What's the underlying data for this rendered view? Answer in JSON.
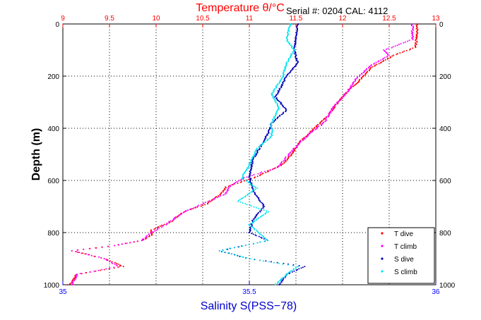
{
  "chart_data": {
    "type": "scatter",
    "title": "Temperature θ/°C",
    "annotation": "Serial #: 0204  CAL: 4112",
    "xlabel_top": "Temperature θ/°C",
    "xlabel_bottom": "Salinity S(PSS−78)",
    "ylabel": "Depth (m)",
    "x_top": {
      "min": 9,
      "max": 13,
      "ticks": [
        "9",
        "9.5",
        "10",
        "10.5",
        "11",
        "11.5",
        "12",
        "12.5",
        "13"
      ],
      "color": "#ff0000"
    },
    "x_bottom": {
      "min": 35,
      "max": 36,
      "ticks": [
        "35",
        "35.5",
        "36"
      ],
      "color": "#0000ff"
    },
    "y": {
      "min": 0,
      "max": 1000,
      "reversed": true,
      "ticks": [
        "0",
        "200",
        "400",
        "600",
        "800",
        "1000"
      ]
    },
    "grid": true,
    "legend_position": "bottom-right",
    "series": [
      {
        "name": "T dive",
        "axis": "top",
        "color": "#ff0000",
        "marker": "dot",
        "points": [
          [
            12.8,
            0
          ],
          [
            12.8,
            40
          ],
          [
            12.78,
            90
          ],
          [
            12.55,
            120
          ],
          [
            12.3,
            170
          ],
          [
            12.2,
            210
          ],
          [
            12.05,
            260
          ],
          [
            11.95,
            300
          ],
          [
            11.85,
            350
          ],
          [
            11.7,
            400
          ],
          [
            11.55,
            450
          ],
          [
            11.45,
            500
          ],
          [
            11.35,
            540
          ],
          [
            11.05,
            590
          ],
          [
            10.75,
            625
          ],
          [
            10.7,
            650
          ],
          [
            10.55,
            690
          ],
          [
            10.3,
            720
          ],
          [
            10.15,
            760
          ],
          [
            9.95,
            790
          ],
          [
            9.95,
            810
          ],
          [
            9.85,
            830
          ],
          [
            9.55,
            850
          ],
          [
            9.1,
            870
          ],
          [
            9.45,
            900
          ],
          [
            9.65,
            930
          ],
          [
            9.15,
            960
          ],
          [
            9.1,
            990
          ],
          [
            9.05,
            1000
          ]
        ]
      },
      {
        "name": "T climb",
        "axis": "top",
        "color": "#ff00ff",
        "marker": "dot",
        "points": [
          [
            12.75,
            0
          ],
          [
            12.75,
            60
          ],
          [
            12.45,
            100
          ],
          [
            12.5,
            120
          ],
          [
            12.3,
            160
          ],
          [
            12.15,
            210
          ],
          [
            12.05,
            260
          ],
          [
            11.9,
            320
          ],
          [
            11.8,
            380
          ],
          [
            11.65,
            420
          ],
          [
            11.5,
            470
          ],
          [
            11.4,
            510
          ],
          [
            11.3,
            550
          ],
          [
            10.95,
            590
          ],
          [
            10.8,
            620
          ],
          [
            10.75,
            650
          ],
          [
            10.5,
            690
          ],
          [
            10.3,
            720
          ],
          [
            10.1,
            770
          ],
          [
            9.95,
            800
          ],
          [
            9.85,
            830
          ],
          [
            9.55,
            850
          ],
          [
            9.1,
            870
          ],
          [
            9.45,
            900
          ],
          [
            9.6,
            930
          ],
          [
            9.15,
            960
          ],
          [
            9.1,
            1000
          ]
        ]
      },
      {
        "name": "S dive",
        "axis": "bottom",
        "color": "#0000bb",
        "marker": "dot",
        "points": [
          [
            35.63,
            0
          ],
          [
            35.62,
            100
          ],
          [
            35.63,
            150
          ],
          [
            35.6,
            200
          ],
          [
            35.57,
            280
          ],
          [
            35.6,
            330
          ],
          [
            35.56,
            380
          ],
          [
            35.55,
            420
          ],
          [
            35.53,
            470
          ],
          [
            35.51,
            520
          ],
          [
            35.5,
            580
          ],
          [
            35.51,
            640
          ],
          [
            35.54,
            700
          ],
          [
            35.51,
            750
          ],
          [
            35.5,
            800
          ],
          [
            35.55,
            830
          ],
          [
            35.42,
            870
          ],
          [
            35.5,
            900
          ],
          [
            35.65,
            930
          ],
          [
            35.6,
            960
          ],
          [
            35.58,
            1000
          ]
        ]
      },
      {
        "name": "S climb",
        "axis": "bottom",
        "color": "#00e5ee",
        "marker": "dot",
        "points": [
          [
            35.61,
            0
          ],
          [
            35.6,
            60
          ],
          [
            35.62,
            100
          ],
          [
            35.6,
            150
          ],
          [
            35.59,
            200
          ],
          [
            35.56,
            270
          ],
          [
            35.58,
            320
          ],
          [
            35.56,
            380
          ],
          [
            35.56,
            430
          ],
          [
            35.52,
            480
          ],
          [
            35.5,
            540
          ],
          [
            35.48,
            590
          ],
          [
            35.52,
            630
          ],
          [
            35.47,
            680
          ],
          [
            35.55,
            720
          ],
          [
            35.5,
            770
          ],
          [
            35.55,
            830
          ],
          [
            35.42,
            870
          ],
          [
            35.5,
            900
          ],
          [
            35.63,
            930
          ],
          [
            35.6,
            960
          ],
          [
            35.57,
            1000
          ]
        ]
      }
    ]
  }
}
